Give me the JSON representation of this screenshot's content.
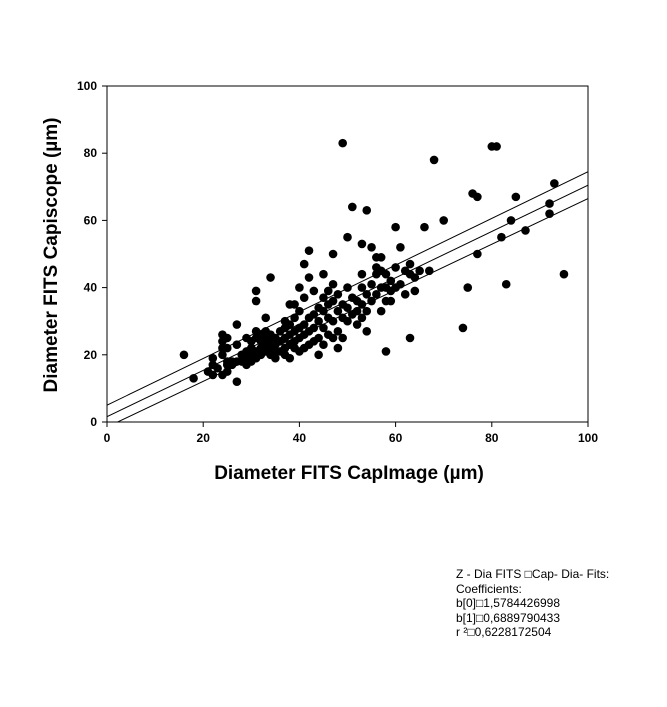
{
  "chart_data": {
    "type": "scatter",
    "xlabel": "Diameter FITS CapImage (µm)",
    "ylabel": "Diameter FITS Capiscope (µm)",
    "xlim": [
      0,
      100
    ],
    "ylim": [
      0,
      100
    ],
    "x_ticks": [
      "0",
      "20",
      "40",
      "60",
      "80",
      "100"
    ],
    "y_ticks": [
      "0",
      "20",
      "40",
      "60",
      "80",
      "100"
    ],
    "grid": false,
    "series": [
      {
        "points": [
          [
            16,
            20
          ],
          [
            18,
            13
          ],
          [
            21,
            15
          ],
          [
            22,
            14
          ],
          [
            22,
            17
          ],
          [
            22,
            19
          ],
          [
            23,
            16
          ],
          [
            24,
            14
          ],
          [
            24,
            20
          ],
          [
            24,
            22
          ],
          [
            24,
            24
          ],
          [
            24,
            26
          ],
          [
            25,
            15
          ],
          [
            25,
            17
          ],
          [
            25,
            18
          ],
          [
            25,
            22
          ],
          [
            25,
            25
          ],
          [
            26,
            17
          ],
          [
            26,
            18
          ],
          [
            27,
            12
          ],
          [
            27,
            18
          ],
          [
            27,
            23
          ],
          [
            27,
            29
          ],
          [
            28,
            18
          ],
          [
            28,
            20
          ],
          [
            29,
            17
          ],
          [
            29,
            19
          ],
          [
            29,
            21
          ],
          [
            29,
            25
          ],
          [
            30,
            18
          ],
          [
            30,
            20
          ],
          [
            30,
            22
          ],
          [
            30,
            24
          ],
          [
            31,
            19
          ],
          [
            31,
            21
          ],
          [
            31,
            25
          ],
          [
            31,
            27
          ],
          [
            31,
            36
          ],
          [
            31,
            39
          ],
          [
            32,
            20
          ],
          [
            32,
            22
          ],
          [
            32,
            24
          ],
          [
            32,
            26
          ],
          [
            33,
            21
          ],
          [
            33,
            23
          ],
          [
            33,
            25
          ],
          [
            33,
            27
          ],
          [
            33,
            31
          ],
          [
            34,
            20
          ],
          [
            34,
            22
          ],
          [
            34,
            24
          ],
          [
            34,
            26
          ],
          [
            34,
            43
          ],
          [
            35,
            19
          ],
          [
            35,
            21
          ],
          [
            35,
            23
          ],
          [
            35,
            25
          ],
          [
            36,
            21
          ],
          [
            36,
            24
          ],
          [
            36,
            27
          ],
          [
            37,
            20
          ],
          [
            37,
            22
          ],
          [
            37,
            25
          ],
          [
            37,
            28
          ],
          [
            37,
            30
          ],
          [
            38,
            19
          ],
          [
            38,
            23
          ],
          [
            38,
            26
          ],
          [
            38,
            29
          ],
          [
            38,
            35
          ],
          [
            39,
            22
          ],
          [
            39,
            24
          ],
          [
            39,
            27
          ],
          [
            39,
            31
          ],
          [
            39,
            35
          ],
          [
            40,
            21
          ],
          [
            40,
            25
          ],
          [
            40,
            28
          ],
          [
            40,
            33
          ],
          [
            40,
            40
          ],
          [
            41,
            22
          ],
          [
            41,
            26
          ],
          [
            41,
            29
          ],
          [
            41,
            37
          ],
          [
            41,
            47
          ],
          [
            42,
            23
          ],
          [
            42,
            27
          ],
          [
            42,
            31
          ],
          [
            42,
            43
          ],
          [
            42,
            51
          ],
          [
            43,
            24
          ],
          [
            43,
            28
          ],
          [
            43,
            32
          ],
          [
            43,
            39
          ],
          [
            44,
            20
          ],
          [
            44,
            25
          ],
          [
            44,
            30
          ],
          [
            44,
            34
          ],
          [
            45,
            23
          ],
          [
            45,
            28
          ],
          [
            45,
            33
          ],
          [
            45,
            37
          ],
          [
            45,
            44
          ],
          [
            46,
            26
          ],
          [
            46,
            31
          ],
          [
            46,
            35
          ],
          [
            46,
            39
          ],
          [
            47,
            25
          ],
          [
            47,
            30
          ],
          [
            47,
            36
          ],
          [
            47,
            41
          ],
          [
            47,
            50
          ],
          [
            48,
            22
          ],
          [
            48,
            27
          ],
          [
            48,
            33
          ],
          [
            48,
            38
          ],
          [
            49,
            25
          ],
          [
            49,
            31
          ],
          [
            49,
            35
          ],
          [
            49,
            83
          ],
          [
            50,
            30
          ],
          [
            50,
            34
          ],
          [
            50,
            40
          ],
          [
            50,
            55
          ],
          [
            51,
            32
          ],
          [
            51,
            37
          ],
          [
            51,
            64
          ],
          [
            52,
            29
          ],
          [
            52,
            33
          ],
          [
            52,
            36
          ],
          [
            53,
            31
          ],
          [
            53,
            35
          ],
          [
            53,
            40
          ],
          [
            53,
            44
          ],
          [
            53,
            53
          ],
          [
            54,
            27
          ],
          [
            54,
            33
          ],
          [
            54,
            38
          ],
          [
            54,
            63
          ],
          [
            55,
            36
          ],
          [
            55,
            41
          ],
          [
            55,
            52
          ],
          [
            56,
            38
          ],
          [
            56,
            44
          ],
          [
            56,
            46
          ],
          [
            56,
            49
          ],
          [
            57,
            33
          ],
          [
            57,
            40
          ],
          [
            57,
            45
          ],
          [
            57,
            49
          ],
          [
            58,
            21
          ],
          [
            58,
            36
          ],
          [
            58,
            40
          ],
          [
            58,
            44
          ],
          [
            59,
            36
          ],
          [
            59,
            39
          ],
          [
            59,
            42
          ],
          [
            60,
            40
          ],
          [
            60,
            46
          ],
          [
            60,
            58
          ],
          [
            61,
            41
          ],
          [
            61,
            52
          ],
          [
            62,
            45
          ],
          [
            62,
            38
          ],
          [
            63,
            25
          ],
          [
            63,
            44
          ],
          [
            63,
            47
          ],
          [
            64,
            39
          ],
          [
            64,
            43
          ],
          [
            65,
            45
          ],
          [
            66,
            58
          ],
          [
            67,
            45
          ],
          [
            68,
            78
          ],
          [
            70,
            60
          ],
          [
            74,
            28
          ],
          [
            75,
            40
          ],
          [
            76,
            68
          ],
          [
            77,
            67
          ],
          [
            77,
            50
          ],
          [
            80,
            82
          ],
          [
            81,
            82
          ],
          [
            82,
            55
          ],
          [
            83,
            41
          ],
          [
            84,
            60
          ],
          [
            85,
            67
          ],
          [
            87,
            57
          ],
          [
            92,
            62
          ],
          [
            92,
            65
          ],
          [
            93,
            71
          ],
          [
            95,
            44
          ]
        ]
      }
    ],
    "regression": {
      "b0": 1.5784426998,
      "b1": 0.6889790433,
      "lines": [
        {
          "kind": "fit",
          "y_at_0": 1.58,
          "y_at_100": 70.48
        },
        {
          "kind": "upper_ci",
          "y_at_0": 5.0,
          "y_at_100": 74.5
        },
        {
          "kind": "lower_ci",
          "y_at_0": -1.5,
          "y_at_100": 66.5
        }
      ]
    }
  },
  "stats_box": {
    "line1": "Z - Dia FITS □Cap- Dia- Fits:",
    "line2": "Coefficients:",
    "line3": "b[0]□1,5784426998",
    "line4": "b[1]□0,6889790433",
    "line5": "r ²□0,6228172504"
  }
}
